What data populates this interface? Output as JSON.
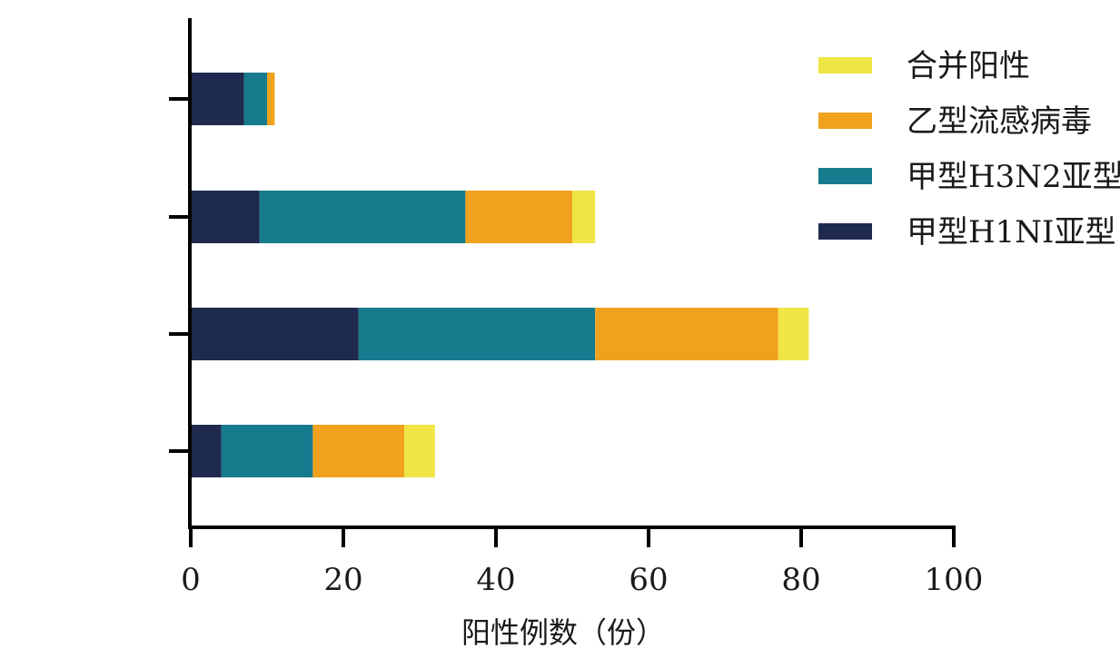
{
  "chart_data": {
    "type": "bar",
    "orientation": "horizontal",
    "stacked": true,
    "title": "",
    "xlabel": "阳性例数（份）",
    "ylabel": "",
    "xlim": [
      0,
      100
    ],
    "xticks": [
      0,
      20,
      40,
      60,
      80,
      100
    ],
    "categories": [
      "",
      "",
      "",
      ""
    ],
    "category_order": "top-to-bottom",
    "series": [
      {
        "name": "甲型H1NI亚型",
        "color": "#1f2a4f",
        "values": [
          7,
          9,
          22,
          4
        ]
      },
      {
        "name": "甲型H3N2亚型",
        "color": "#177b8e",
        "values": [
          3,
          27,
          31,
          12
        ]
      },
      {
        "name": "乙型流感病毒",
        "color": "#f0a21e",
        "values": [
          1,
          14,
          24,
          12
        ]
      },
      {
        "name": "合并阳性",
        "color": "#efe646",
        "values": [
          0,
          3,
          4,
          4
        ]
      }
    ],
    "legend": {
      "position": "top-right",
      "order": [
        "合并阳性",
        "乙型流感病毒",
        "甲型H3N2亚型",
        "甲型H1NI亚型"
      ]
    },
    "grid": false
  }
}
